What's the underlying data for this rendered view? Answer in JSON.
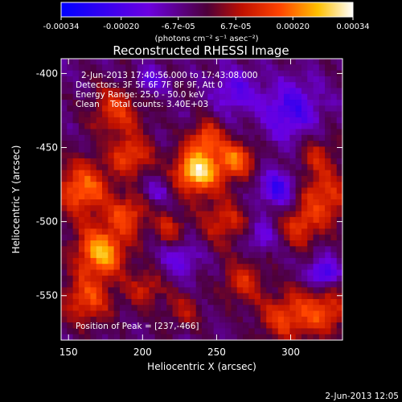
{
  "chart_data": {
    "type": "heatmap",
    "title": "Reconstructed RHESSI Image",
    "xlabel": "Heliocentric X (arcsec)",
    "ylabel": "Heliocentric Y (arcsec)",
    "xlim": [
      145,
      335
    ],
    "ylim": [
      -580,
      -390
    ],
    "xticks": [
      150,
      200,
      250,
      300
    ],
    "yticks": [
      -400,
      -450,
      -500,
      -550
    ],
    "colorbar": {
      "min": -0.00034,
      "max": 0.00034,
      "tick_labels": [
        "-0.00034",
        "-0.00020",
        "-6.7e-05",
        "6.7e-05",
        "0.00020",
        "0.00034"
      ],
      "tick_values": [
        -0.00034,
        -0.0002,
        -6.7e-05,
        6.7e-05,
        0.0002,
        0.00034
      ],
      "unit_label": "(photons cm⁻² s⁻¹ asec⁻²)"
    },
    "annotations": {
      "time_range": "2-Jun-2013 17:40:56.000 to 17:43:08.000",
      "detectors": "Detectors: 3F 5F 6F 7F 8F 9F, Att 0",
      "energy": "Energy Range: 25.0 - 50.0 keV",
      "clean": "Clean    Total counts: 3.40E+03",
      "peak": "Position of Peak = [237,-466]"
    },
    "sources": [
      {
        "x": 237,
        "y": -466,
        "sigma": 11,
        "amp": 1.0
      },
      {
        "x": 263,
        "y": -458,
        "sigma": 9,
        "amp": 0.65
      },
      {
        "x": 243,
        "y": -443,
        "sigma": 8,
        "amp": 0.55
      },
      {
        "x": 172,
        "y": -520,
        "sigma": 12,
        "amp": 0.85
      },
      {
        "x": 160,
        "y": -478,
        "sigma": 13,
        "amp": 0.7
      },
      {
        "x": 192,
        "y": -455,
        "sigma": 10,
        "amp": 0.55
      },
      {
        "x": 182,
        "y": -425,
        "sigma": 12,
        "amp": 0.5
      },
      {
        "x": 162,
        "y": -553,
        "sigma": 12,
        "amp": 0.55
      },
      {
        "x": 190,
        "y": -495,
        "sigma": 9,
        "amp": 0.55
      },
      {
        "x": 202,
        "y": -545,
        "sigma": 9,
        "amp": 0.4
      },
      {
        "x": 218,
        "y": -505,
        "sigma": 8,
        "amp": 0.4
      },
      {
        "x": 255,
        "y": -500,
        "sigma": 11,
        "amp": 0.45
      },
      {
        "x": 268,
        "y": -540,
        "sigma": 10,
        "amp": 0.45
      },
      {
        "x": 295,
        "y": -565,
        "sigma": 12,
        "amp": 0.5
      },
      {
        "x": 322,
        "y": -560,
        "sigma": 12,
        "amp": 0.55
      },
      {
        "x": 322,
        "y": -485,
        "sigma": 13,
        "amp": 0.55
      },
      {
        "x": 305,
        "y": -505,
        "sigma": 9,
        "amp": 0.45
      },
      {
        "x": 318,
        "y": -455,
        "sigma": 10,
        "amp": 0.35
      },
      {
        "x": 228,
        "y": -560,
        "sigma": 9,
        "amp": 0.3
      },
      {
        "x": 205,
        "y": -405,
        "sigma": 7,
        "amp": -0.35
      },
      {
        "x": 262,
        "y": -412,
        "sigma": 10,
        "amp": -0.4
      },
      {
        "x": 300,
        "y": -425,
        "sigma": 14,
        "amp": -0.5
      },
      {
        "x": 292,
        "y": -478,
        "sigma": 9,
        "amp": -0.55
      },
      {
        "x": 322,
        "y": -535,
        "sigma": 7,
        "amp": -0.6
      },
      {
        "x": 225,
        "y": -525,
        "sigma": 9,
        "amp": -0.35
      },
      {
        "x": 280,
        "y": -510,
        "sigma": 7,
        "amp": -0.35
      },
      {
        "x": 210,
        "y": -480,
        "sigma": 6,
        "amp": -0.25
      }
    ]
  },
  "footer": {
    "date": "2-Jun-2013 12:05"
  }
}
